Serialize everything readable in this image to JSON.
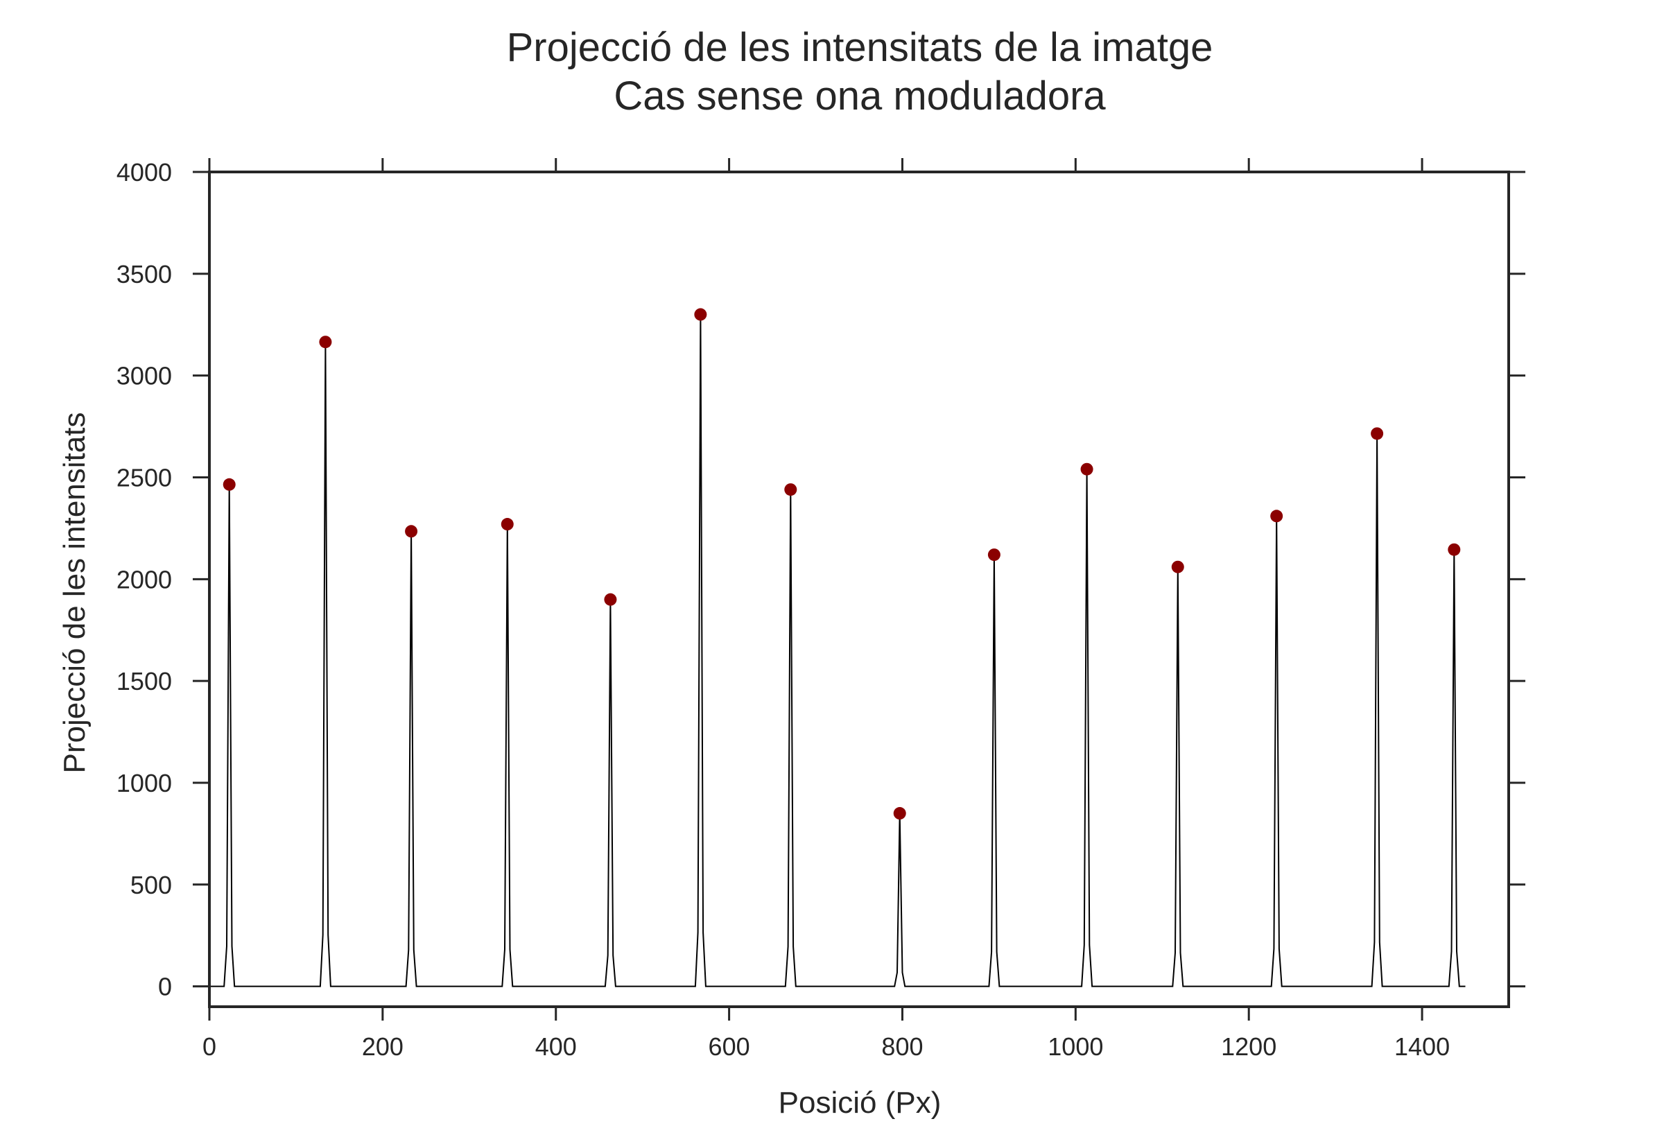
{
  "chart_data": {
    "type": "line",
    "title_lines": [
      "Projecció de les intensitats de la imatge",
      "Cas sense ona moduladora"
    ],
    "xlabel": "Posició (Px)",
    "ylabel": "Projecció de les intensitats",
    "xlim": [
      0,
      1500
    ],
    "ylim": [
      -100,
      4000
    ],
    "x_ticks": [
      0,
      200,
      400,
      600,
      800,
      1000,
      1200,
      1400
    ],
    "y_ticks": [
      0,
      500,
      1000,
      1500,
      2000,
      2500,
      3000,
      3500,
      4000
    ],
    "grid": false,
    "legend": "none",
    "line_color": "#000000",
    "marker_color": "#8b0000",
    "x_range": [
      0,
      1450
    ],
    "peaks": [
      {
        "x": 23,
        "y": 2465
      },
      {
        "x": 134,
        "y": 3165
      },
      {
        "x": 233,
        "y": 2235
      },
      {
        "x": 344,
        "y": 2270
      },
      {
        "x": 463,
        "y": 1900
      },
      {
        "x": 567,
        "y": 3300
      },
      {
        "x": 671,
        "y": 2440
      },
      {
        "x": 797,
        "y": 850
      },
      {
        "x": 906,
        "y": 2120
      },
      {
        "x": 1013,
        "y": 2540
      },
      {
        "x": 1118,
        "y": 2060
      },
      {
        "x": 1232,
        "y": 2310
      },
      {
        "x": 1348,
        "y": 2715
      },
      {
        "x": 1437,
        "y": 2145
      }
    ]
  }
}
